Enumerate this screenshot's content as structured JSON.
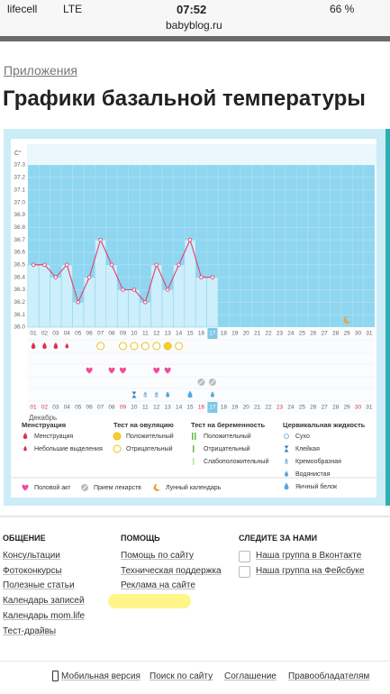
{
  "status_bar": {
    "carrier": "lifecell",
    "network": "LTE",
    "time": "07:52",
    "battery": "66 %",
    "url": "babyblog.ru"
  },
  "breadcrumb": "Приложения",
  "title": "Графики базальной температуры",
  "chart_data": {
    "type": "line",
    "y_unit": "C°",
    "month": "Декабрь",
    "categories": [
      "01",
      "02",
      "03",
      "04",
      "05",
      "06",
      "07",
      "08",
      "09",
      "10",
      "11",
      "12",
      "13",
      "14",
      "15",
      "16",
      "17",
      "18",
      "19",
      "20",
      "21",
      "22",
      "23",
      "24",
      "25",
      "26",
      "27",
      "28",
      "29",
      "30",
      "31"
    ],
    "series": [
      {
        "color": "#e04a78",
        "values": [
          36.5,
          36.5,
          36.4,
          36.5,
          36.2,
          36.4,
          36.7,
          36.5,
          36.3,
          36.3,
          36.2,
          36.5,
          36.3,
          36.5,
          36.7,
          36.4,
          36.4,
          null,
          null,
          null,
          null,
          null,
          null,
          null,
          null,
          null,
          null,
          null,
          null,
          null,
          null
        ]
      }
    ],
    "ylim": [
      36.0,
      37.3
    ],
    "yticks": [
      {
        "value": 36,
        "label": "36.0"
      },
      36.1,
      36.2,
      36.3,
      36.4,
      36.5,
      36.6,
      36.7,
      36.8,
      36.9,
      {
        "value": 37,
        "label": "37.0"
      },
      37.1,
      37.2,
      37.3
    ],
    "grid": true
  },
  "legend": {
    "groups": [
      {
        "title": "Менструация",
        "items": [
          "Менструация",
          "Небольшие выделения"
        ]
      },
      {
        "title": "Тест на овуляцию",
        "items": [
          "Положительный",
          "Отрицательный"
        ]
      },
      {
        "title": "Тест на беременность",
        "items": [
          "Положительный",
          "Отрицательный",
          "Слабоположительный"
        ]
      },
      {
        "title": "Цервикальная жидкость",
        "items": [
          "Сухо",
          "Клейкая",
          "Кремообразная",
          "Водянистая",
          "Яичный белок"
        ]
      }
    ],
    "extra": [
      "Половой акт",
      "Прием лекарств",
      "Лунный календарь"
    ]
  },
  "footer": {
    "columns": [
      {
        "title": "ОБЩЕНИЕ",
        "links": [
          "Консультации",
          "Фотоконкурсы",
          "Полезные статьи",
          "Календарь записей",
          "Календарь mom.life",
          "Тест-драйвы"
        ]
      },
      {
        "title": "ПОМОЩЬ",
        "links": [
          "Помощь по сайту",
          "Техническая поддержка",
          "Реклама на сайте"
        ]
      },
      {
        "title": "СЛЕДИТЕ ЗА НАМИ",
        "links": [
          "Наша группа в Вконтакте",
          "Наша группа на Фейсбуке"
        ]
      }
    ],
    "bottom_links": [
      "Мобильная версия",
      "Поиск по сайту",
      "Соглашение",
      "Правообладателям"
    ]
  }
}
